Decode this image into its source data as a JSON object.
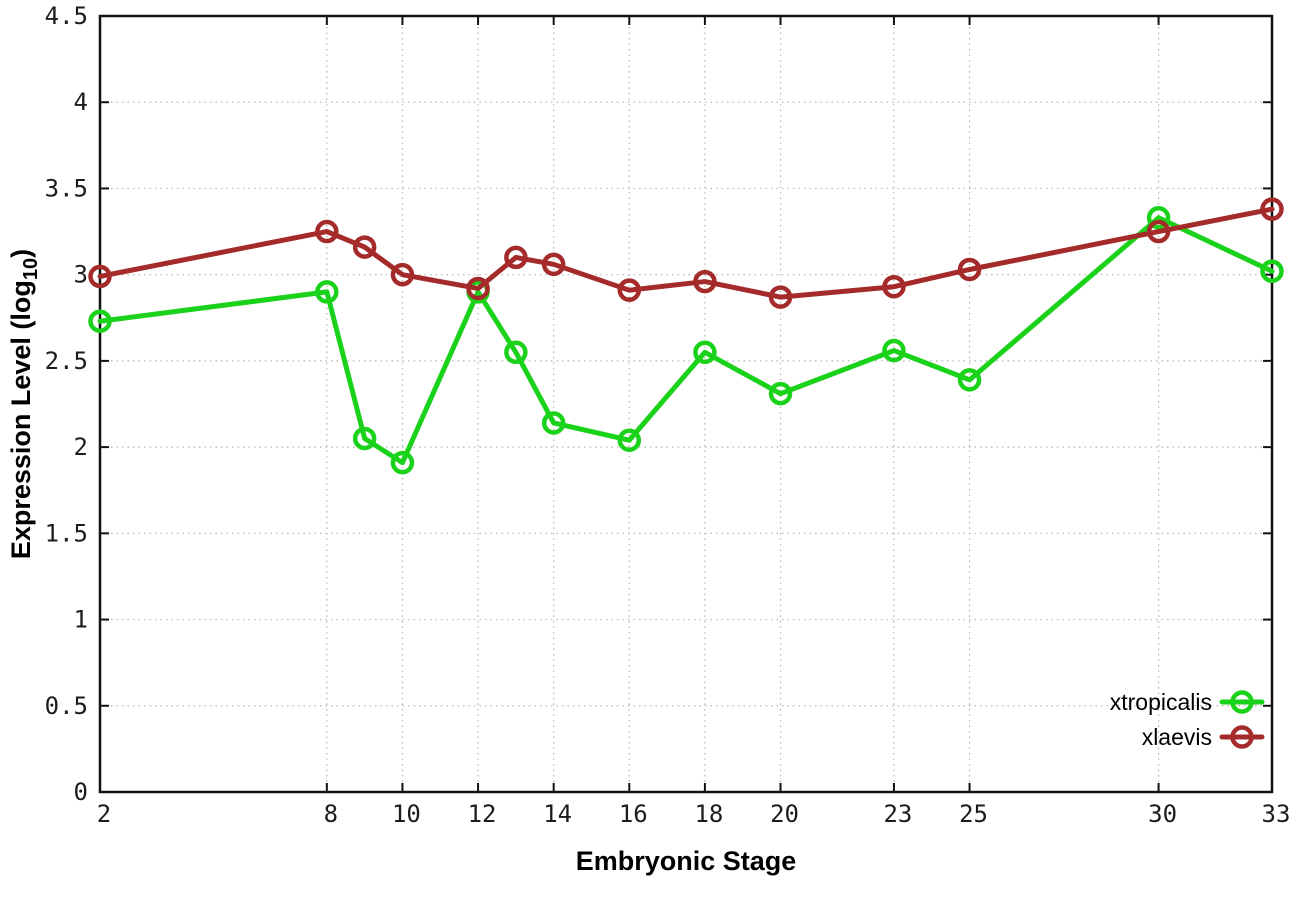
{
  "chart_data": {
    "type": "line",
    "title": "",
    "xlabel": "Embryonic Stage",
    "ylabel": "Expression Level (log10)",
    "ylabel_parts": {
      "prefix": "Expression Level (log",
      "sub": "10",
      "suffix": ")"
    },
    "xlim": [
      2,
      33
    ],
    "ylim": [
      0,
      4.5
    ],
    "x_tick_labels": [
      "2",
      "8",
      "10",
      "12",
      "14",
      "16",
      "18",
      "20",
      "23",
      "25",
      "30",
      "33"
    ],
    "x_tick_values": [
      2,
      8,
      10,
      12,
      14,
      16,
      18,
      20,
      23,
      25,
      30,
      33
    ],
    "y_tick_labels": [
      "0",
      "0.5",
      "1",
      "1.5",
      "2",
      "2.5",
      "3",
      "3.5",
      "4",
      "4.5"
    ],
    "y_tick_values": [
      0,
      0.5,
      1,
      1.5,
      2,
      2.5,
      3,
      3.5,
      4,
      4.5
    ],
    "grid": "dotted",
    "legend_position": "bottom-right-inside",
    "x": [
      2,
      8,
      9,
      10,
      12,
      13,
      14,
      16,
      18,
      20,
      23,
      25,
      30,
      33
    ],
    "series": [
      {
        "name": "xtropicalis",
        "color": "#1bd21b",
        "values": [
          2.73,
          2.9,
          2.05,
          1.91,
          2.9,
          2.55,
          2.14,
          2.04,
          2.55,
          2.31,
          2.56,
          2.39,
          3.33,
          3.02
        ]
      },
      {
        "name": "xlaevis",
        "color": "#a52a2a",
        "values": [
          2.99,
          3.25,
          3.16,
          3.0,
          2.92,
          3.1,
          3.06,
          2.91,
          2.96,
          2.87,
          2.93,
          3.03,
          3.25,
          3.38
        ]
      }
    ],
    "style": {
      "grid_color": "#b4b4b4",
      "border_color": "#111111",
      "line_width": 5,
      "marker_radius": 9.5,
      "marker_stroke": 4.5,
      "background": "#ffffff"
    }
  }
}
